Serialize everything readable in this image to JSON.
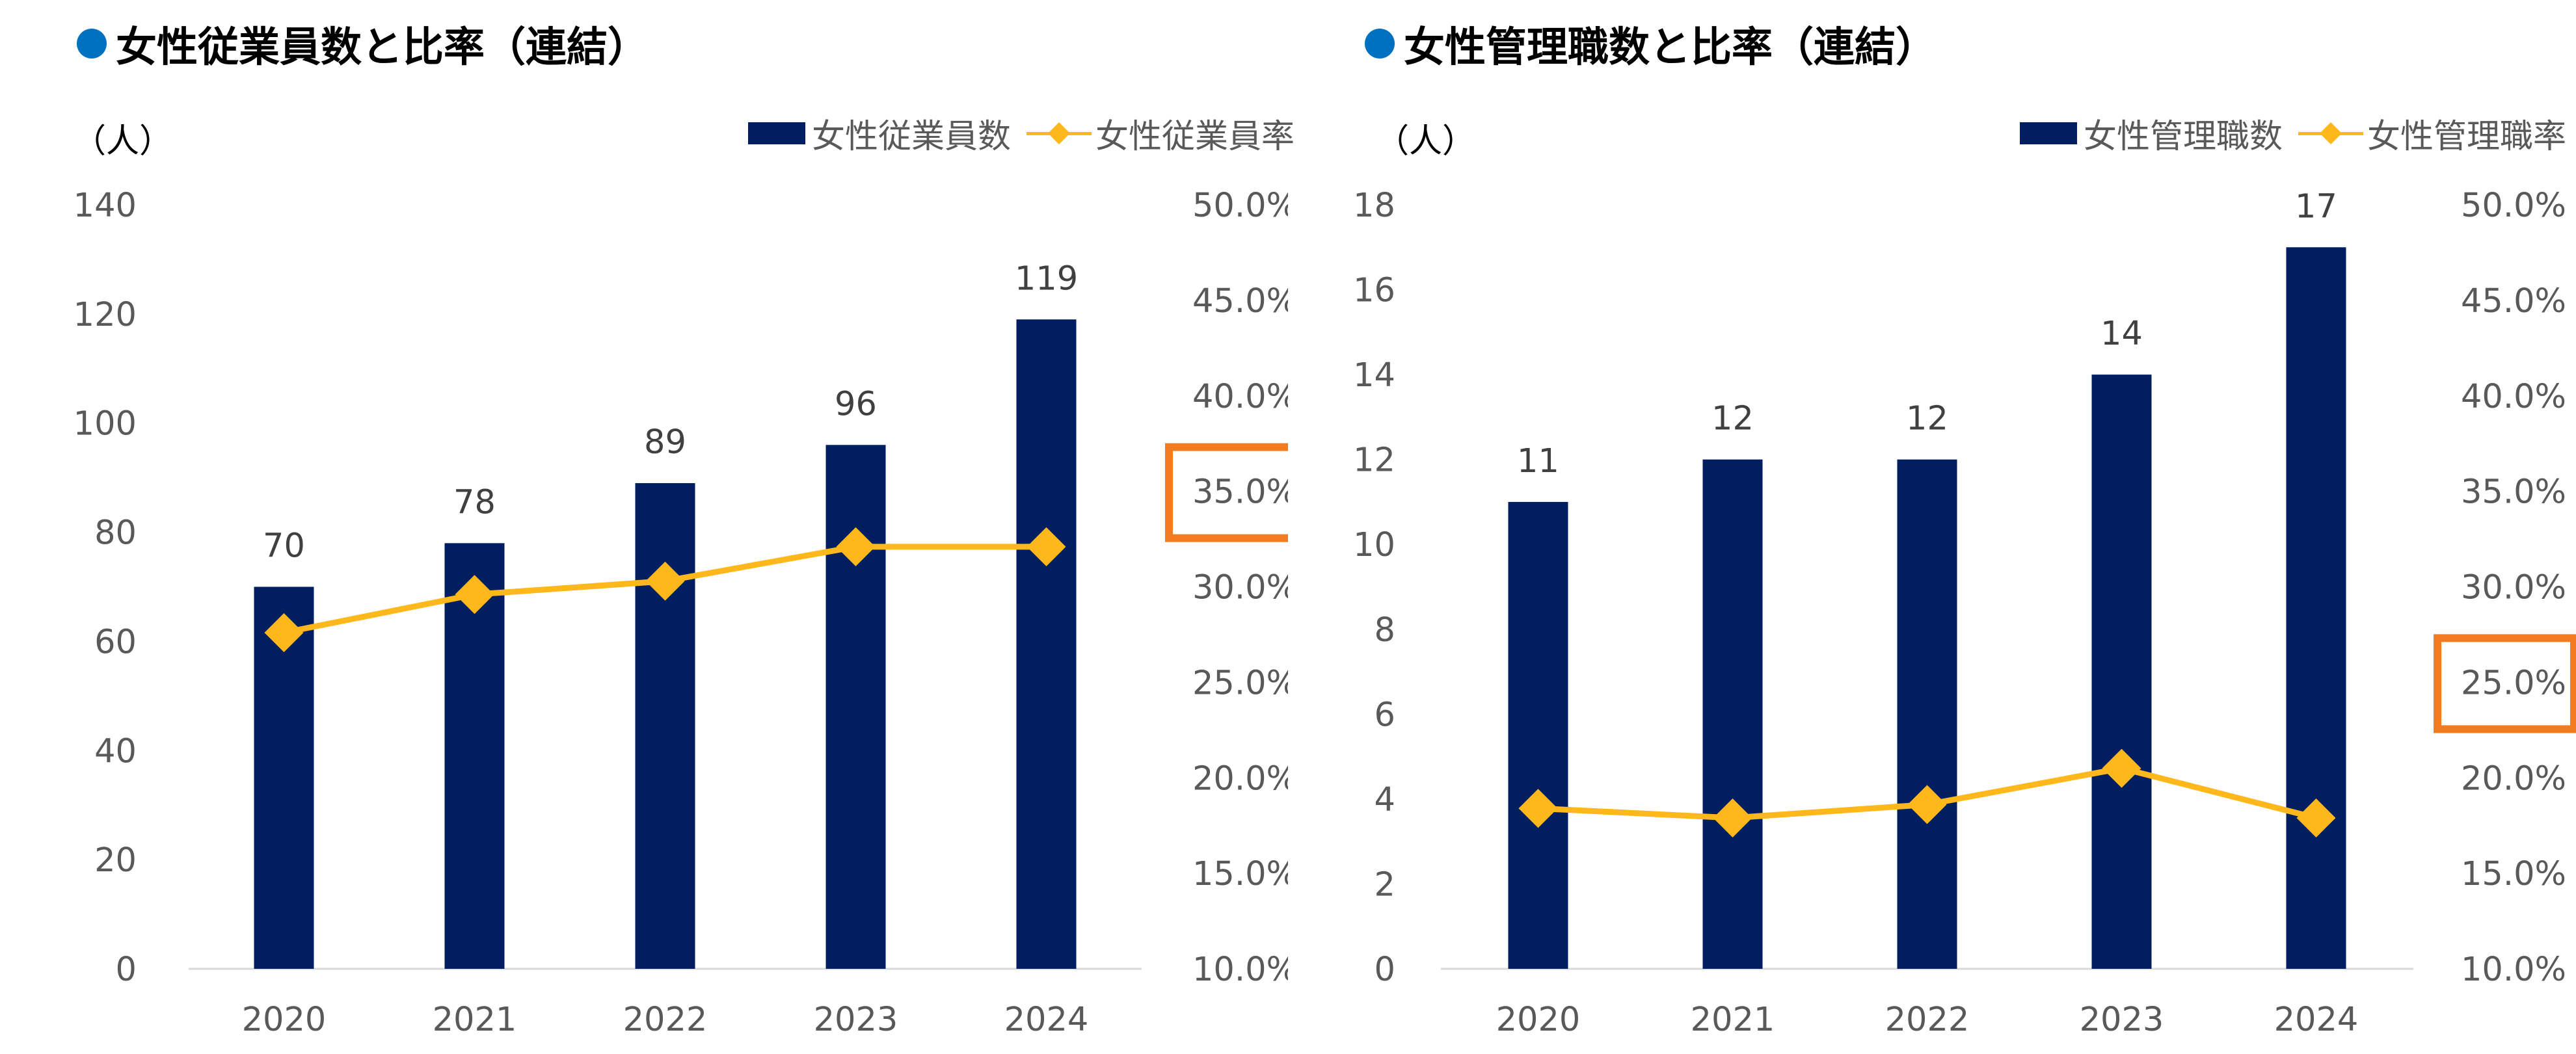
{
  "colors": {
    "accent_dot": "#0070C0",
    "bar": "#001E60",
    "line": "#FFB81C",
    "highlight": "#F47C20",
    "text": "#595959"
  },
  "chart_data": [
    {
      "type": "bar",
      "title": "女性従業員数と比率（連結）",
      "unit": "（人）",
      "categories": [
        "2020",
        "2021",
        "2022",
        "2023",
        "2024"
      ],
      "series": [
        {
          "name": "女性従業員数",
          "type": "bar",
          "axis": "left",
          "values": [
            70,
            78,
            89,
            96,
            119
          ]
        },
        {
          "name": "女性従業員率",
          "type": "line",
          "axis": "right",
          "values": [
            27.6,
            29.6,
            30.3,
            32.1,
            32.1
          ]
        }
      ],
      "data_labels": [
        "70",
        "78",
        "89",
        "96",
        "119"
      ],
      "ylim": [
        0,
        140
      ],
      "yticks": [
        "0",
        "20",
        "40",
        "60",
        "80",
        "100",
        "120",
        "140"
      ],
      "y2lim": [
        10,
        50
      ],
      "y2ticks": [
        "10.0%",
        "15.0%",
        "20.0%",
        "25.0%",
        "30.0%",
        "35.0%",
        "40.0%",
        "45.0%",
        "50.0%"
      ],
      "highlight_tick": "35.0%",
      "legend": "top-right",
      "grid": false
    },
    {
      "type": "bar",
      "title": "女性管理職数と比率（連結）",
      "unit": "（人）",
      "categories": [
        "2020",
        "2021",
        "2022",
        "2023",
        "2024"
      ],
      "series": [
        {
          "name": "女性管理職数",
          "type": "bar",
          "axis": "left",
          "values": [
            11,
            12,
            12,
            14,
            17
          ]
        },
        {
          "name": "女性管理職率",
          "type": "line",
          "axis": "right",
          "values": [
            18.4,
            17.9,
            18.6,
            20.5,
            17.9
          ]
        }
      ],
      "data_labels": [
        "11",
        "12",
        "12",
        "14",
        "17"
      ],
      "ylim": [
        0,
        18
      ],
      "yticks": [
        "0",
        "2",
        "4",
        "6",
        "8",
        "10",
        "12",
        "14",
        "16",
        "18"
      ],
      "y2lim": [
        10,
        50
      ],
      "y2ticks": [
        "10.0%",
        "15.0%",
        "20.0%",
        "25.0%",
        "30.0%",
        "35.0%",
        "40.0%",
        "45.0%",
        "50.0%"
      ],
      "highlight_tick": "25.0%",
      "legend": "top-right",
      "grid": false
    }
  ]
}
